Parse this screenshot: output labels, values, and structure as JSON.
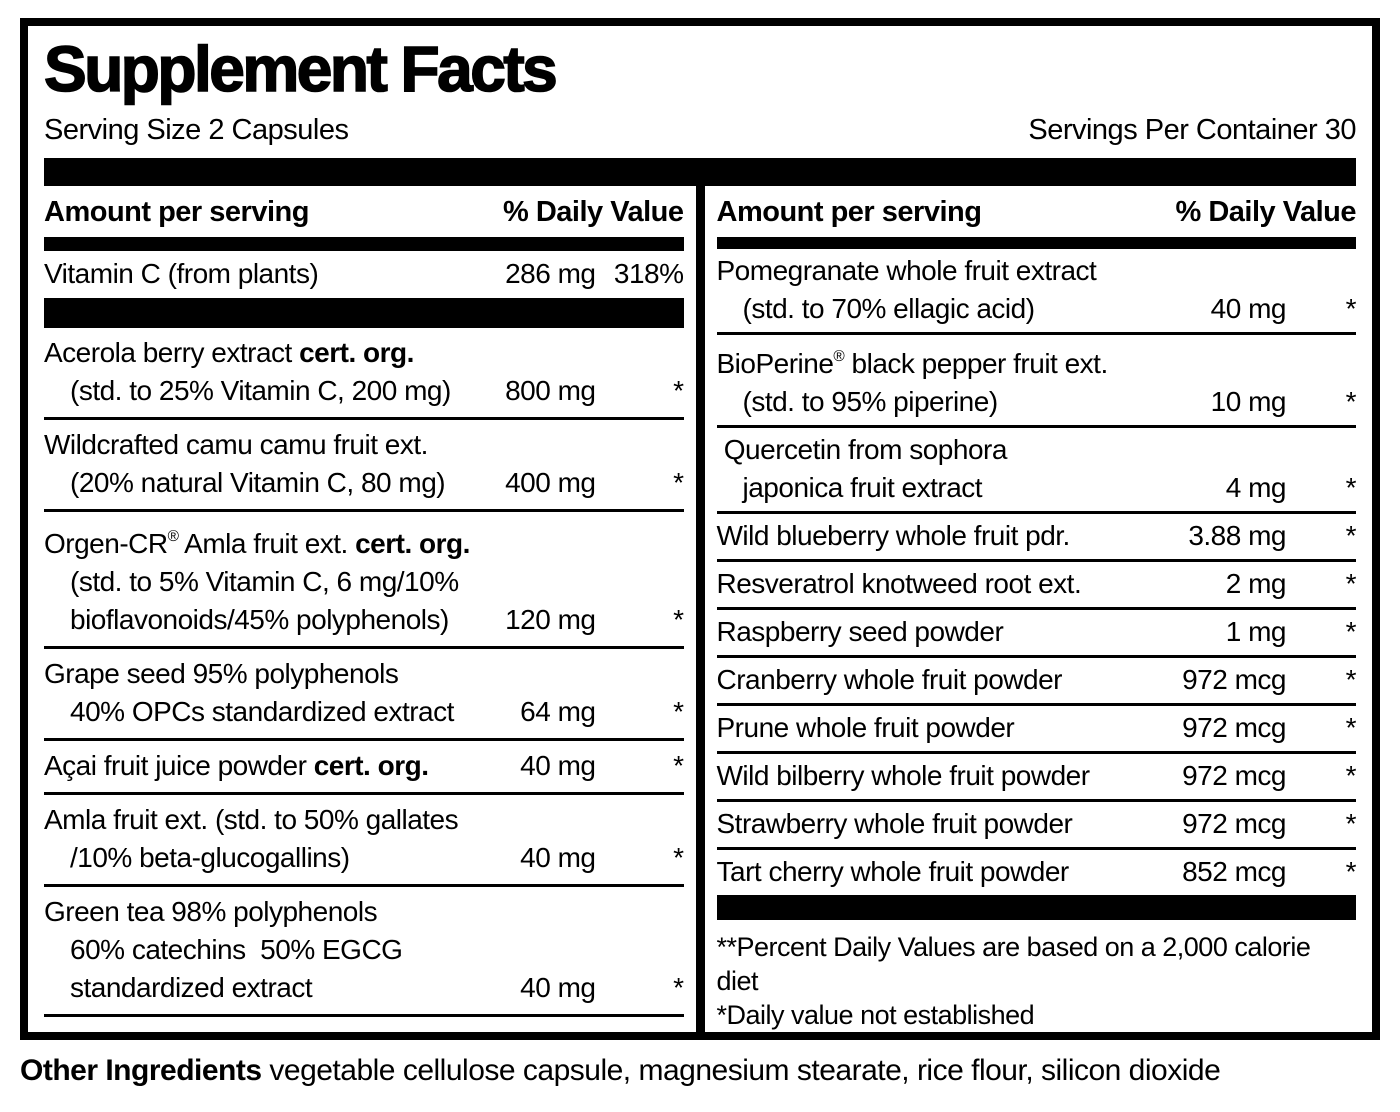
{
  "colors": {
    "ink": "#000000",
    "paper": "#ffffff"
  },
  "label": {
    "title": "Supplement Facts",
    "serving_size": "Serving Size 2 Capsules",
    "servings_per_container": "Servings Per Container 30",
    "column_headers": {
      "amount": "Amount per serving",
      "daily_value": "% Daily Value"
    },
    "left": {
      "top_rows": [
        {
          "lines": [
            [
              {
                "t": "Vitamin C (from plants)"
              }
            ]
          ],
          "amount": "286 mg",
          "dv": "318%"
        }
      ],
      "rows": [
        {
          "lines": [
            [
              {
                "t": "Acerola berry extract "
              },
              {
                "t": "cert. org.",
                "b": true
              }
            ],
            [
              {
                "t": "(std. to 25% Vitamin C, 200 mg)"
              }
            ]
          ],
          "amount": "800 mg",
          "dv": "*"
        },
        {
          "lines": [
            [
              {
                "t": "Wildcrafted camu camu fruit ext."
              }
            ],
            [
              {
                "t": "(20% natural Vitamin C, 80 mg)"
              }
            ]
          ],
          "amount": "400 mg",
          "dv": "*"
        },
        {
          "lines": [
            [
              {
                "t": "Orgen-CR"
              },
              {
                "t": "®",
                "s": true
              },
              {
                "t": " Amla fruit ext. "
              },
              {
                "t": "cert. org.",
                "b": true
              }
            ],
            [
              {
                "t": "(std. to 5% Vitamin C, 6 mg/10%"
              }
            ],
            [
              {
                "t": "bioflavonoids/45% polyphenols)"
              }
            ]
          ],
          "amount": "120 mg",
          "dv": "*"
        },
        {
          "lines": [
            [
              {
                "t": "Grape seed 95% polyphenols"
              }
            ],
            [
              {
                "t": "40% OPCs standardized extract"
              }
            ]
          ],
          "amount": "64 mg",
          "dv": "*"
        },
        {
          "lines": [
            [
              {
                "t": "Açai fruit juice powder "
              },
              {
                "t": "cert. org.",
                "b": true
              }
            ]
          ],
          "amount": "40 mg",
          "dv": "*"
        },
        {
          "lines": [
            [
              {
                "t": "Amla fruit ext. (std. to 50% gallates"
              }
            ],
            [
              {
                "t": "/10% beta-glucogallins)"
              }
            ]
          ],
          "amount": "40 mg",
          "dv": "*"
        },
        {
          "lines": [
            [
              {
                "t": "Green tea 98% polyphenols"
              }
            ],
            [
              {
                "t": "60% catechins  50% EGCG"
              }
            ],
            [
              {
                "t": "standardized extract"
              }
            ]
          ],
          "amount": "40 mg",
          "dv": "*"
        }
      ]
    },
    "right": {
      "rows": [
        {
          "lines": [
            [
              {
                "t": "Pomegranate whole fruit extract"
              }
            ],
            [
              {
                "t": "(std. to 70% ellagic acid)"
              }
            ]
          ],
          "amount": "40 mg",
          "dv": "*"
        },
        {
          "lines": [
            [
              {
                "t": "BioPerine"
              },
              {
                "t": "®",
                "s": true
              },
              {
                "t": " black pepper fruit ext."
              }
            ],
            [
              {
                "t": "(std. to 95% piperine)"
              }
            ]
          ],
          "amount": "10 mg",
          "dv": "*"
        },
        {
          "lines": [
            [
              {
                "t": " Quercetin from sophora"
              }
            ],
            [
              {
                "t": "japonica fruit extract"
              }
            ]
          ],
          "amount": "4 mg",
          "dv": "*"
        },
        {
          "lines": [
            [
              {
                "t": "Wild blueberry whole fruit pdr."
              }
            ]
          ],
          "amount": "3.88 mg",
          "dv": "*"
        },
        {
          "lines": [
            [
              {
                "t": "Resveratrol knotweed root ext."
              }
            ]
          ],
          "amount": "2 mg",
          "dv": "*"
        },
        {
          "lines": [
            [
              {
                "t": "Raspberry seed powder"
              }
            ]
          ],
          "amount": "1 mg",
          "dv": "*"
        },
        {
          "lines": [
            [
              {
                "t": "Cranberry whole fruit powder"
              }
            ]
          ],
          "amount": "972 mcg",
          "dv": "*"
        },
        {
          "lines": [
            [
              {
                "t": "Prune whole fruit powder"
              }
            ]
          ],
          "amount": "972 mcg",
          "dv": "*"
        },
        {
          "lines": [
            [
              {
                "t": "Wild bilberry whole fruit powder"
              }
            ]
          ],
          "amount": "972 mcg",
          "dv": "*"
        },
        {
          "lines": [
            [
              {
                "t": "Strawberry whole fruit powder"
              }
            ]
          ],
          "amount": "972 mcg",
          "dv": "*"
        },
        {
          "lines": [
            [
              {
                "t": "Tart cherry whole fruit powder"
              }
            ]
          ],
          "amount": "852 mcg",
          "dv": "*"
        }
      ],
      "footnotes": [
        "**Percent Daily Values are based on a 2,000 calorie diet",
        "*Daily value not established"
      ]
    },
    "other_ingredients": {
      "label": "Other Ingredients",
      "text": " vegetable cellulose capsule, magnesium stearate, rice flour, silicon dioxide"
    }
  }
}
